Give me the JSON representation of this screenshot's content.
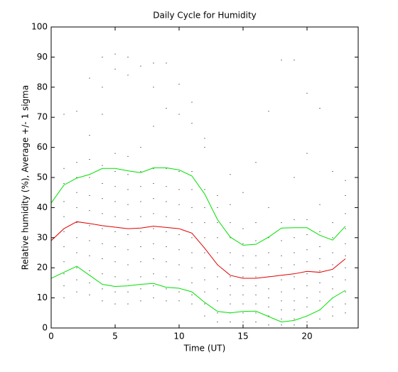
{
  "chart_data": {
    "type": "line",
    "title": "Daily Cycle for Humidity",
    "xlabel": "Time (UT)",
    "ylabel": "Relative humidity (%), Average +/- 1 sigma",
    "x": [
      0,
      1,
      2,
      3,
      4,
      5,
      6,
      7,
      8,
      9,
      10,
      11,
      12,
      13,
      14,
      15,
      16,
      17,
      18,
      19,
      20,
      21,
      22,
      23
    ],
    "series": [
      {
        "color": "#00e000",
        "values": [
          41.5,
          47.5,
          49.8,
          51,
          53,
          53,
          52.2,
          51.6,
          53.2,
          53.2,
          52.5,
          50.5,
          44.5,
          36,
          30.2,
          27.5,
          27.8,
          30.2,
          33.2,
          33.3,
          33.3,
          30.8,
          29.2,
          33.8
        ]
      },
      {
        "color": "#e00000",
        "values": [
          29,
          33,
          35.3,
          34.7,
          34,
          33.5,
          33,
          33.2,
          33.8,
          33.4,
          33,
          31.5,
          26.5,
          21,
          17.5,
          16.5,
          16.5,
          17,
          17.5,
          18,
          18.8,
          18.5,
          19.5,
          23
        ]
      },
      {
        "color": "#00e000",
        "values": [
          16.5,
          18.5,
          20.5,
          17.5,
          14.5,
          13.8,
          14,
          14.5,
          14.8,
          13.5,
          13.2,
          12,
          8.5,
          5.5,
          5,
          5.5,
          5.6,
          3.8,
          2,
          2.5,
          4,
          6,
          10,
          12.5
        ]
      }
    ],
    "dots_color": "#000000",
    "dots": [
      [
        8,
        12,
        15,
        18,
        22,
        26,
        30,
        35,
        40,
        45,
        50,
        54
      ],
      [
        10,
        14,
        18,
        22,
        27,
        32,
        37,
        42,
        48,
        53,
        71
      ],
      [
        12,
        16,
        20,
        25,
        30,
        35,
        40,
        45,
        50,
        55,
        72
      ],
      [
        11,
        15,
        19,
        24,
        29,
        34,
        39,
        44,
        50,
        56,
        64,
        83
      ],
      [
        9,
        13,
        18,
        23,
        28,
        33,
        38,
        43,
        48,
        54,
        71,
        80,
        90
      ],
      [
        8,
        12,
        17,
        22,
        27,
        32,
        37,
        42,
        47,
        52,
        58,
        86,
        91
      ],
      [
        8,
        12,
        16,
        21,
        26,
        31,
        36,
        41,
        46,
        51,
        57,
        84,
        90
      ],
      [
        9,
        13,
        17,
        22,
        27,
        32,
        37,
        42,
        47,
        52,
        60,
        87
      ],
      [
        10,
        14,
        18,
        23,
        28,
        33,
        38,
        43,
        48,
        53,
        67,
        80,
        88
      ],
      [
        9,
        13,
        17,
        22,
        27,
        32,
        37,
        42,
        47,
        53,
        73,
        88
      ],
      [
        9,
        12,
        16,
        21,
        26,
        31,
        36,
        41,
        46,
        52,
        71,
        81
      ],
      [
        8,
        11,
        15,
        20,
        25,
        30,
        35,
        40,
        46,
        52,
        68,
        75
      ],
      [
        4,
        8,
        12,
        16,
        20,
        25,
        30,
        35,
        40,
        46,
        60,
        63
      ],
      [
        2,
        5,
        9,
        13,
        17,
        21,
        25,
        30,
        35,
        40,
        44
      ],
      [
        2,
        5,
        8,
        11,
        14,
        17,
        21,
        25,
        30,
        35,
        41,
        51
      ],
      [
        2,
        5,
        8,
        11,
        14,
        17,
        20,
        24,
        28,
        33,
        45
      ],
      [
        2,
        5,
        8,
        11,
        14,
        17,
        20,
        24,
        29,
        35,
        55
      ],
      [
        1,
        4,
        7,
        10,
        13,
        17,
        21,
        25,
        30,
        40,
        72
      ],
      [
        1,
        3,
        6,
        9,
        12,
        16,
        20,
        24,
        29,
        35,
        89
      ],
      [
        1,
        3,
        6,
        9,
        13,
        17,
        21,
        25,
        30,
        36,
        50,
        89
      ],
      [
        2,
        4,
        7,
        10,
        14,
        18,
        22,
        26,
        31,
        36,
        58,
        78
      ],
      [
        3,
        6,
        9,
        12,
        15,
        19,
        23,
        27,
        32,
        41,
        73
      ],
      [
        4,
        7,
        10,
        13,
        17,
        21,
        25,
        30,
        35,
        52
      ],
      [
        5,
        8,
        12,
        16,
        20,
        24,
        28,
        33,
        38,
        44,
        49
      ]
    ],
    "xlim": [
      0,
      24
    ],
    "xticks": [
      0,
      5,
      10,
      15,
      20
    ],
    "ylim": [
      0,
      100
    ],
    "yticks": [
      0,
      10,
      20,
      30,
      40,
      50,
      60,
      70,
      80,
      90,
      100
    ]
  }
}
